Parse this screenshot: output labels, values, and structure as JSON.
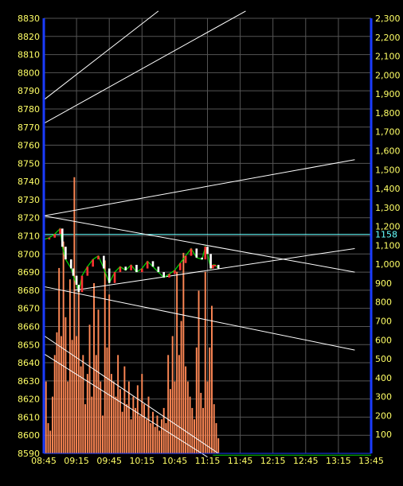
{
  "chart_data": {
    "type": "candlestick",
    "x_ticks": [
      "08:45",
      "09:15",
      "09:45",
      "10:15",
      "10:45",
      "11:15",
      "11:45",
      "12:15",
      "12:45",
      "13:15",
      "13:45"
    ],
    "y_left": {
      "range": [
        8590,
        8830
      ],
      "ticks": [
        8590,
        8600,
        8610,
        8620,
        8630,
        8640,
        8650,
        8660,
        8670,
        8680,
        8690,
        8700,
        8710,
        8720,
        8730,
        8740,
        8750,
        8760,
        8770,
        8780,
        8790,
        8800,
        8810,
        8820,
        8830
      ]
    },
    "y_right": {
      "range": [
        0,
        2300
      ],
      "ticks": [
        "100",
        "200",
        "300",
        "400",
        "500",
        "600",
        "700",
        "800",
        "900",
        "1,000",
        "1,100",
        "1,200",
        "1,300",
        "1,400",
        "1,500",
        "1,600",
        "1,700",
        "1,800",
        "1,900",
        "2,000",
        "2,100",
        "2,200",
        "2,300"
      ]
    },
    "reference_line": {
      "value": "1158",
      "right_value": 1158
    },
    "price_path": [
      [
        "08:45",
        8708
      ],
      [
        "08:50",
        8709
      ],
      [
        "08:55",
        8711
      ],
      [
        "09:00",
        8714
      ],
      [
        "09:02",
        8704
      ],
      [
        "09:05",
        8697
      ],
      [
        "09:10",
        8692
      ],
      [
        "09:12",
        8688
      ],
      [
        "09:15",
        8683
      ],
      [
        "09:17",
        8679
      ],
      [
        "09:20",
        8688
      ],
      [
        "09:25",
        8693
      ],
      [
        "09:30",
        8697
      ],
      [
        "09:35",
        8699
      ],
      [
        "09:40",
        8692
      ],
      [
        "09:45",
        8684
      ],
      [
        "09:50",
        8690
      ],
      [
        "09:55",
        8693
      ],
      [
        "10:00",
        8691
      ],
      [
        "10:05",
        8694
      ],
      [
        "10:10",
        8690
      ],
      [
        "10:15",
        8692
      ],
      [
        "10:20",
        8696
      ],
      [
        "10:25",
        8693
      ],
      [
        "10:30",
        8690
      ],
      [
        "10:35",
        8687
      ],
      [
        "10:40",
        8689
      ],
      [
        "10:45",
        8691
      ],
      [
        "10:50",
        8695
      ],
      [
        "10:55",
        8699
      ],
      [
        "11:00",
        8703
      ],
      [
        "11:05",
        8698
      ],
      [
        "11:10",
        8697
      ],
      [
        "11:13",
        8704
      ],
      [
        "11:15",
        8700
      ],
      [
        "11:18",
        8692
      ],
      [
        "11:20",
        8694
      ],
      [
        "11:22",
        8694
      ],
      [
        "11:25",
        8692
      ]
    ],
    "volume_path": [
      [
        "08:45",
        210
      ],
      [
        "08:47",
        380
      ],
      [
        "08:49",
        160
      ],
      [
        "08:51",
        120
      ],
      [
        "08:53",
        300
      ],
      [
        "08:55",
        520
      ],
      [
        "08:57",
        640
      ],
      [
        "08:59",
        980
      ],
      [
        "09:01",
        620
      ],
      [
        "09:03",
        1120
      ],
      [
        "09:05",
        720
      ],
      [
        "09:07",
        380
      ],
      [
        "09:09",
        920
      ],
      [
        "09:11",
        600
      ],
      [
        "09:13",
        1460
      ],
      [
        "09:15",
        620
      ],
      [
        "09:17",
        860
      ],
      [
        "09:19",
        460
      ],
      [
        "09:21",
        520
      ],
      [
        "09:23",
        260
      ],
      [
        "09:25",
        420
      ],
      [
        "09:27",
        680
      ],
      [
        "09:29",
        300
      ],
      [
        "09:31",
        900
      ],
      [
        "09:33",
        520
      ],
      [
        "09:35",
        760
      ],
      [
        "09:37",
        380
      ],
      [
        "09:39",
        200
      ],
      [
        "09:41",
        1020
      ],
      [
        "09:43",
        560
      ],
      [
        "09:45",
        840
      ],
      [
        "09:47",
        420
      ],
      [
        "09:49",
        380
      ],
      [
        "09:51",
        300
      ],
      [
        "09:53",
        520
      ],
      [
        "09:55",
        340
      ],
      [
        "09:57",
        220
      ],
      [
        "09:59",
        460
      ],
      [
        "10:01",
        260
      ],
      [
        "10:03",
        380
      ],
      [
        "10:05",
        180
      ],
      [
        "10:07",
        300
      ],
      [
        "10:09",
        240
      ],
      [
        "10:11",
        360
      ],
      [
        "10:13",
        200
      ],
      [
        "10:15",
        420
      ],
      [
        "10:17",
        260
      ],
      [
        "10:19",
        180
      ],
      [
        "10:21",
        300
      ],
      [
        "10:23",
        160
      ],
      [
        "10:25",
        220
      ],
      [
        "10:27",
        140
      ],
      [
        "10:29",
        200
      ],
      [
        "10:31",
        120
      ],
      [
        "10:33",
        180
      ],
      [
        "10:35",
        240
      ],
      [
        "10:37",
        160
      ],
      [
        "10:39",
        520
      ],
      [
        "10:41",
        340
      ],
      [
        "10:43",
        620
      ],
      [
        "10:45",
        380
      ],
      [
        "10:47",
        960
      ],
      [
        "10:49",
        520
      ],
      [
        "10:51",
        700
      ],
      [
        "10:53",
        1060
      ],
      [
        "10:55",
        460
      ],
      [
        "10:57",
        380
      ],
      [
        "10:59",
        300
      ],
      [
        "11:01",
        240
      ],
      [
        "11:03",
        180
      ],
      [
        "11:05",
        560
      ],
      [
        "11:07",
        860
      ],
      [
        "11:09",
        320
      ],
      [
        "11:11",
        240
      ],
      [
        "11:13",
        960
      ],
      [
        "11:15",
        380
      ],
      [
        "11:17",
        560
      ],
      [
        "11:19",
        780
      ],
      [
        "11:21",
        260
      ],
      [
        "11:23",
        160
      ],
      [
        "11:25",
        80
      ]
    ]
  }
}
